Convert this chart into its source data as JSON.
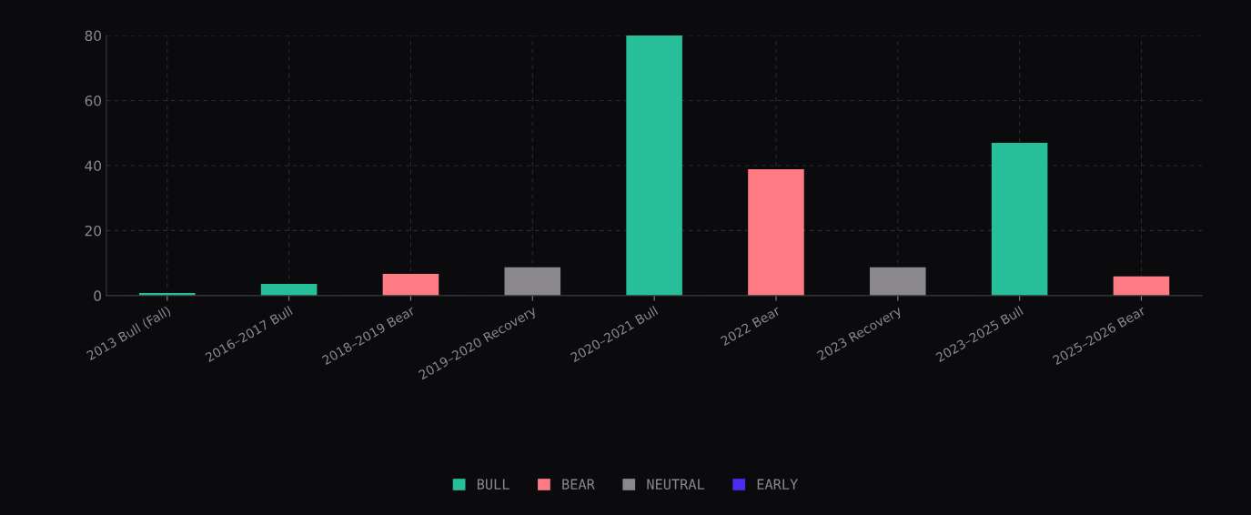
{
  "chart_data": {
    "type": "bar",
    "categories": [
      "2013 Bull (Fall)",
      "2016–2017 Bull",
      "2018–2019 Bear",
      "2019–2020 Recovery",
      "2020–2021 Bull",
      "2022 Bear",
      "2023 Recovery",
      "2023–2025 Bull",
      "2025–2026 Bear"
    ],
    "series": [
      {
        "name": "BULL",
        "color": "#26bf99",
        "values": [
          0.8,
          3.6,
          null,
          null,
          80,
          null,
          null,
          47,
          null
        ]
      },
      {
        "name": "BEAR",
        "color": "#ff7b83",
        "values": [
          null,
          null,
          6.7,
          null,
          null,
          38.9,
          null,
          null,
          5.9
        ]
      },
      {
        "name": "NEUTRAL",
        "color": "#8a888b",
        "values": [
          null,
          null,
          null,
          8.7,
          null,
          null,
          8.7,
          null,
          null
        ]
      },
      {
        "name": "EARLY",
        "color": "#4d2cf0",
        "values": [
          null,
          null,
          null,
          null,
          null,
          null,
          null,
          null,
          null
        ]
      }
    ],
    "ylim": [
      0,
      80
    ],
    "yticks": [
      0,
      20,
      40,
      60,
      80
    ],
    "grid": true,
    "legend": "bottom"
  }
}
